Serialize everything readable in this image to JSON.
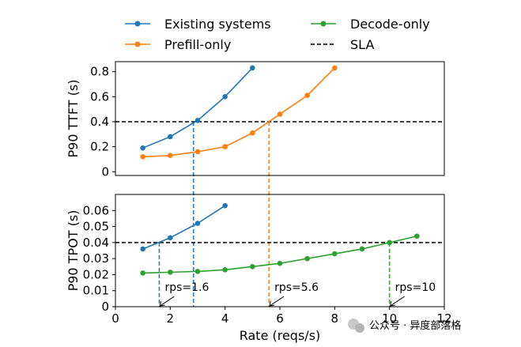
{
  "colors": {
    "existing": "#1f77b4",
    "prefill": "#ff7f0e",
    "decode": "#2ca02c",
    "sla": "#000000"
  },
  "legend": {
    "placement": "top, above plots, two columns",
    "entries": [
      "Existing systems",
      "Prefill-only",
      "Decode-only",
      "SLA"
    ]
  },
  "xlabel": "Rate (reqs/s)",
  "watermark": "公众号 · 异度部落格",
  "chart_data": [
    {
      "type": "line",
      "title": "",
      "xlabel": "",
      "ylabel": "P90 TTFT (s)",
      "xlim": [
        0,
        12
      ],
      "ylim": [
        -0.03,
        0.88
      ],
      "yticks": [
        0,
        0.2,
        0.4,
        0.6,
        0.8
      ],
      "ytick_labels": [
        "0",
        "0.2",
        "0.4",
        "0.6",
        "0.8"
      ],
      "sla": 0.4,
      "series": [
        {
          "name": "Existing systems",
          "color_key": "existing",
          "x": [
            1,
            2,
            3,
            4,
            5
          ],
          "y": [
            0.19,
            0.28,
            0.41,
            0.6,
            0.83
          ]
        },
        {
          "name": "Prefill-only",
          "color_key": "prefill",
          "x": [
            1,
            2,
            3,
            4,
            5,
            6,
            7,
            8
          ],
          "y": [
            0.12,
            0.13,
            0.16,
            0.2,
            0.31,
            0.46,
            0.61,
            0.83
          ]
        }
      ]
    },
    {
      "type": "line",
      "title": "",
      "xlabel": "Rate (reqs/s)",
      "ylabel": "P90 TPOT (s)",
      "xlim": [
        0,
        12
      ],
      "ylim": [
        0,
        0.07
      ],
      "xticks": [
        0,
        2,
        4,
        6,
        8,
        10,
        12
      ],
      "xtick_labels": [
        "0",
        "2",
        "4",
        "6",
        "8",
        "10",
        "12"
      ],
      "yticks": [
        0,
        0.01,
        0.02,
        0.03,
        0.04,
        0.05,
        0.06
      ],
      "ytick_labels": [
        "0",
        "0.01",
        "0.02",
        "0.03",
        "0.04",
        "0.05",
        "0.06"
      ],
      "sla": 0.04,
      "series": [
        {
          "name": "Existing systems",
          "color_key": "existing",
          "x": [
            1,
            2,
            3,
            4
          ],
          "y": [
            0.036,
            0.043,
            0.052,
            0.063
          ]
        },
        {
          "name": "Decode-only",
          "color_key": "decode",
          "x": [
            1,
            2,
            3,
            4,
            5,
            6,
            7,
            8,
            9,
            10,
            11
          ],
          "y": [
            0.021,
            0.0215,
            0.022,
            0.023,
            0.025,
            0.027,
            0.03,
            0.033,
            0.036,
            0.04,
            0.044
          ]
        }
      ],
      "annotations": [
        {
          "text": "rps=1.6",
          "x": 1.6,
          "color_key": "existing"
        },
        {
          "text": "rps=5.6",
          "x": 5.6,
          "color_key": "prefill"
        },
        {
          "text": "rps=10",
          "x": 10,
          "color_key": "decode"
        }
      ]
    }
  ],
  "crossings": [
    {
      "x": 2.85,
      "color_key": "existing",
      "from_panel": 0,
      "to_panel": 1
    },
    {
      "x": 5.6,
      "color_key": "prefill",
      "from_panel": 0,
      "to_panel": 1
    },
    {
      "x": 1.6,
      "color_key": "existing",
      "from_panel": 1,
      "to_panel": 1
    },
    {
      "x": 10,
      "color_key": "decode",
      "from_panel": 1,
      "to_panel": 1
    }
  ]
}
